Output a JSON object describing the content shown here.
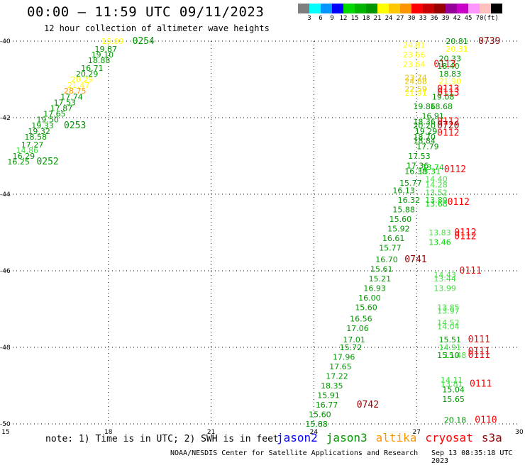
{
  "title": "00:00 – 11:59 UTC 09/11/2023",
  "subtitle": "12 hour collection of altimeter wave heights",
  "colorbar": {
    "colors": [
      "#7f7f7f",
      "#00ffff",
      "#0096ff",
      "#0000ff",
      "#00d800",
      "#00b400",
      "#009600",
      "#ffff00",
      "#ffc800",
      "#ff9600",
      "#ff0000",
      "#c80000",
      "#960000",
      "#960096",
      "#c800c8",
      "#ff96ff",
      "#ffbfbf",
      "#000000"
    ],
    "labels": [
      "3",
      "6",
      "9",
      "12",
      "15",
      "18",
      "21",
      "24",
      "27",
      "30",
      "33",
      "36",
      "39",
      "42",
      "45",
      "70",
      "(ft)"
    ]
  },
  "chart_data": {
    "type": "scatter",
    "x_ticks": [
      "15",
      "18",
      "21",
      "24",
      "27",
      "30"
    ],
    "y_ticks": [
      "-40",
      "-42",
      "-44",
      "-46",
      "-48",
      "-50"
    ],
    "xlim": [
      15,
      30
    ],
    "ylim": [
      -50,
      -40
    ],
    "grid": "dotted",
    "colors": {
      "g": "#009600",
      "lg": "#00d800",
      "pg": "#40e040",
      "y": "#ffff00",
      "o": "#e6c800",
      "or": "#ff9600",
      "r": "#ff0000",
      "dr": "#960000"
    },
    "points": [
      {
        "x": 17.8,
        "y": -40.0,
        "t": "19.09",
        "c": "y"
      },
      {
        "x": 18.7,
        "y": -40.0,
        "t": "0254",
        "c": "g"
      },
      {
        "x": 17.6,
        "y": -40.2,
        "t": "19.87",
        "c": "g"
      },
      {
        "x": 17.5,
        "y": -40.35,
        "t": "19.10",
        "c": "g"
      },
      {
        "x": 17.4,
        "y": -40.5,
        "t": "18.88",
        "c": "g"
      },
      {
        "x": 17.2,
        "y": -40.7,
        "t": "16.71",
        "c": "g"
      },
      {
        "x": 17.05,
        "y": -40.85,
        "t": "20.29",
        "c": "g"
      },
      {
        "x": 16.9,
        "y": -41.0,
        "t": "20.29",
        "c": "y"
      },
      {
        "x": 16.8,
        "y": -41.15,
        "t": "21.47",
        "c": "y"
      },
      {
        "x": 16.7,
        "y": -41.3,
        "t": "28.75",
        "c": "or"
      },
      {
        "x": 16.6,
        "y": -41.45,
        "t": "17.74",
        "c": "g"
      },
      {
        "x": 16.4,
        "y": -41.6,
        "t": "17.53",
        "c": "g"
      },
      {
        "x": 16.3,
        "y": -41.75,
        "t": "17.87",
        "c": "g"
      },
      {
        "x": 16.1,
        "y": -41.9,
        "t": "17.65",
        "c": "g"
      },
      {
        "x": 15.9,
        "y": -42.05,
        "t": "19.50",
        "c": "g"
      },
      {
        "x": 15.75,
        "y": -42.2,
        "t": "19.33",
        "c": "g"
      },
      {
        "x": 16.7,
        "y": -42.2,
        "t": "0253",
        "c": "g"
      },
      {
        "x": 15.65,
        "y": -42.35,
        "t": "19.32",
        "c": "g"
      },
      {
        "x": 15.55,
        "y": -42.5,
        "t": "18.58",
        "c": "g"
      },
      {
        "x": 15.45,
        "y": -42.7,
        "t": "17.27",
        "c": "g"
      },
      {
        "x": 15.3,
        "y": -42.85,
        "t": "14.86",
        "c": "pg"
      },
      {
        "x": 15.2,
        "y": -43.0,
        "t": "16.29",
        "c": "g"
      },
      {
        "x": 15.05,
        "y": -43.15,
        "t": "16.25",
        "c": "g"
      },
      {
        "x": 15.9,
        "y": -43.15,
        "t": "0252",
        "c": "g"
      },
      {
        "x": 26.6,
        "y": -40.1,
        "t": "24.81",
        "c": "y"
      },
      {
        "x": 27.85,
        "y": -40.0,
        "t": "20.81",
        "c": "g"
      },
      {
        "x": 28.8,
        "y": -40.0,
        "t": "0739",
        "c": "dr"
      },
      {
        "x": 27.85,
        "y": -40.2,
        "t": "20.31",
        "c": "y"
      },
      {
        "x": 26.6,
        "y": -40.35,
        "t": "23.66",
        "c": "y"
      },
      {
        "x": 27.65,
        "y": -40.45,
        "t": "20.33",
        "c": "g"
      },
      {
        "x": 26.6,
        "y": -40.6,
        "t": "23.64",
        "c": "y"
      },
      {
        "x": 27.5,
        "y": -40.6,
        "t": "0113",
        "c": "r"
      },
      {
        "x": 27.6,
        "y": -40.65,
        "t": "18.40",
        "c": "g"
      },
      {
        "x": 27.65,
        "y": -40.85,
        "t": "18.83",
        "c": "g"
      },
      {
        "x": 26.65,
        "y": -40.95,
        "t": "23.74",
        "c": "o"
      },
      {
        "x": 26.65,
        "y": -41.05,
        "t": "24.88",
        "c": "o"
      },
      {
        "x": 27.65,
        "y": -41.05,
        "t": "21.90",
        "c": "y"
      },
      {
        "x": 26.65,
        "y": -41.25,
        "t": "22.59",
        "c": "o"
      },
      {
        "x": 27.6,
        "y": -41.25,
        "t": "0113",
        "c": "r"
      },
      {
        "x": 26.65,
        "y": -41.35,
        "t": "21.91",
        "c": "y"
      },
      {
        "x": 27.6,
        "y": -41.35,
        "t": "0113",
        "c": "r"
      },
      {
        "x": 27.45,
        "y": -41.45,
        "t": "19.08",
        "c": "g"
      },
      {
        "x": 26.9,
        "y": -41.7,
        "t": "19.86",
        "c": "g"
      },
      {
        "x": 27.4,
        "y": -41.7,
        "t": "18.68",
        "c": "g"
      },
      {
        "x": 27.15,
        "y": -41.95,
        "t": "16.91",
        "c": "g"
      },
      {
        "x": 26.9,
        "y": -42.1,
        "t": "18.36",
        "c": "g"
      },
      {
        "x": 27.6,
        "y": -42.1,
        "t": "0112",
        "c": "r"
      },
      {
        "x": 26.9,
        "y": -42.2,
        "t": "20.20",
        "c": "g"
      },
      {
        "x": 27.6,
        "y": -42.2,
        "t": "0720",
        "c": "dr"
      },
      {
        "x": 26.95,
        "y": -42.35,
        "t": "19.29",
        "c": "g"
      },
      {
        "x": 27.6,
        "y": -42.4,
        "t": "0112",
        "c": "r"
      },
      {
        "x": 26.9,
        "y": -42.5,
        "t": "18.70",
        "c": "g"
      },
      {
        "x": 26.9,
        "y": -42.6,
        "t": "18.84",
        "c": "g"
      },
      {
        "x": 27.0,
        "y": -42.75,
        "t": "17.79",
        "c": "g"
      },
      {
        "x": 26.75,
        "y": -43.0,
        "t": "17.53",
        "c": "g"
      },
      {
        "x": 26.7,
        "y": -43.25,
        "t": "17.36",
        "c": "g"
      },
      {
        "x": 27.15,
        "y": -43.3,
        "t": "13.74",
        "c": "lg"
      },
      {
        "x": 26.65,
        "y": -43.4,
        "t": "16.38",
        "c": "g"
      },
      {
        "x": 27.05,
        "y": -43.4,
        "t": "13.31",
        "c": "lg"
      },
      {
        "x": 27.8,
        "y": -43.35,
        "t": "0112",
        "c": "r"
      },
      {
        "x": 27.25,
        "y": -43.6,
        "t": "14.40",
        "c": "pg"
      },
      {
        "x": 26.5,
        "y": -43.7,
        "t": "15.77",
        "c": "g"
      },
      {
        "x": 27.25,
        "y": -43.75,
        "t": "14.28",
        "c": "pg"
      },
      {
        "x": 26.3,
        "y": -43.9,
        "t": "16.13",
        "c": "g"
      },
      {
        "x": 27.25,
        "y": -43.95,
        "t": "13.52",
        "c": "pg"
      },
      {
        "x": 26.45,
        "y": -44.15,
        "t": "16.32",
        "c": "g"
      },
      {
        "x": 27.25,
        "y": -44.15,
        "t": "13.89",
        "c": "lg"
      },
      {
        "x": 27.25,
        "y": -44.25,
        "t": "13.68",
        "c": "lg"
      },
      {
        "x": 27.9,
        "y": -44.2,
        "t": "0112",
        "c": "r"
      },
      {
        "x": 26.3,
        "y": -44.4,
        "t": "15.88",
        "c": "g"
      },
      {
        "x": 26.2,
        "y": -44.65,
        "t": "15.60",
        "c": "g"
      },
      {
        "x": 26.15,
        "y": -44.9,
        "t": "15.92",
        "c": "g"
      },
      {
        "x": 27.35,
        "y": -45.0,
        "t": "13.83",
        "c": "pg"
      },
      {
        "x": 28.1,
        "y": -45.0,
        "t": "0112",
        "c": "r"
      },
      {
        "x": 28.1,
        "y": -45.1,
        "t": "0112",
        "c": "r"
      },
      {
        "x": 26.0,
        "y": -45.15,
        "t": "16.61",
        "c": "g"
      },
      {
        "x": 27.35,
        "y": -45.25,
        "t": "13.46",
        "c": "lg"
      },
      {
        "x": 25.9,
        "y": -45.4,
        "t": "15.77",
        "c": "g"
      },
      {
        "x": 25.8,
        "y": -45.7,
        "t": "16.70",
        "c": "g"
      },
      {
        "x": 26.65,
        "y": -45.7,
        "t": "0741",
        "c": "dr"
      },
      {
        "x": 25.65,
        "y": -45.95,
        "t": "15.61",
        "c": "g"
      },
      {
        "x": 27.5,
        "y": -46.1,
        "t": "14.43",
        "c": "pg"
      },
      {
        "x": 28.25,
        "y": -46.0,
        "t": "0111",
        "c": "r"
      },
      {
        "x": 25.6,
        "y": -46.2,
        "t": "15.21",
        "c": "g"
      },
      {
        "x": 27.5,
        "y": -46.2,
        "t": "13.44",
        "c": "pg"
      },
      {
        "x": 25.45,
        "y": -46.45,
        "t": "16.93",
        "c": "g"
      },
      {
        "x": 27.5,
        "y": -46.45,
        "t": "13.99",
        "c": "pg"
      },
      {
        "x": 25.3,
        "y": -46.7,
        "t": "16.00",
        "c": "g"
      },
      {
        "x": 25.2,
        "y": -46.95,
        "t": "15.60",
        "c": "g"
      },
      {
        "x": 27.6,
        "y": -46.95,
        "t": "13.85",
        "c": "pg"
      },
      {
        "x": 27.6,
        "y": -47.05,
        "t": "13.97",
        "c": "pg"
      },
      {
        "x": 25.05,
        "y": -47.25,
        "t": "16.56",
        "c": "g"
      },
      {
        "x": 27.6,
        "y": -47.35,
        "t": "14.52",
        "c": "pg"
      },
      {
        "x": 27.6,
        "y": -47.45,
        "t": "14.04",
        "c": "pg"
      },
      {
        "x": 24.95,
        "y": -47.5,
        "t": "17.06",
        "c": "g"
      },
      {
        "x": 24.85,
        "y": -47.8,
        "t": "17.01",
        "c": "g"
      },
      {
        "x": 27.65,
        "y": -47.8,
        "t": "15.51",
        "c": "g"
      },
      {
        "x": 28.5,
        "y": -47.8,
        "t": "0111",
        "c": "r"
      },
      {
        "x": 24.75,
        "y": -48.0,
        "t": "15.72",
        "c": "g"
      },
      {
        "x": 27.65,
        "y": -48.0,
        "t": "14.91",
        "c": "pg"
      },
      {
        "x": 27.8,
        "y": -48.2,
        "t": "15.48",
        "c": "pg"
      },
      {
        "x": 27.6,
        "y": -48.2,
        "t": "15.10",
        "c": "g"
      },
      {
        "x": 28.5,
        "y": -48.1,
        "t": "0111",
        "c": "r"
      },
      {
        "x": 28.5,
        "y": -48.2,
        "t": "0111",
        "c": "r"
      },
      {
        "x": 24.55,
        "y": -48.25,
        "t": "17.96",
        "c": "g"
      },
      {
        "x": 24.45,
        "y": -48.5,
        "t": "17.65",
        "c": "g"
      },
      {
        "x": 24.35,
        "y": -48.75,
        "t": "17.22",
        "c": "g"
      },
      {
        "x": 27.7,
        "y": -48.85,
        "t": "14.11",
        "c": "pg"
      },
      {
        "x": 24.2,
        "y": -49.0,
        "t": "18.35",
        "c": "g"
      },
      {
        "x": 27.7,
        "y": -48.95,
        "t": "13.81",
        "c": "pg"
      },
      {
        "x": 28.55,
        "y": -48.95,
        "t": "0111",
        "c": "r"
      },
      {
        "x": 27.75,
        "y": -49.1,
        "t": "15.04",
        "c": "g"
      },
      {
        "x": 24.1,
        "y": -49.25,
        "t": "15.91",
        "c": "g"
      },
      {
        "x": 27.75,
        "y": -49.35,
        "t": "15.65",
        "c": "g"
      },
      {
        "x": 24.05,
        "y": -49.5,
        "t": "16.77",
        "c": "g"
      },
      {
        "x": 25.25,
        "y": -49.5,
        "t": "0742",
        "c": "dr"
      },
      {
        "x": 23.85,
        "y": -49.75,
        "t": "15.60",
        "c": "g"
      },
      {
        "x": 27.8,
        "y": -49.9,
        "t": "20.18",
        "c": "g"
      },
      {
        "x": 28.7,
        "y": -49.9,
        "t": "0110",
        "c": "r"
      },
      {
        "x": 23.75,
        "y": -50.0,
        "t": "15.88",
        "c": "g"
      }
    ]
  },
  "note": "note:  1) Time is in UTC;  2) SWH is in feet",
  "satellites": [
    {
      "name": "jason2",
      "color": "#0000ff"
    },
    {
      "name": "jason3",
      "color": "#009600"
    },
    {
      "name": "altika",
      "color": "#ff9600"
    },
    {
      "name": "cryosat",
      "color": "#ff0000"
    },
    {
      "name": "s3a",
      "color": "#960000"
    }
  ],
  "footer": "NOAA/NESDIS Center for Satellite Applications and Research",
  "footer_ts": "Sep 13 08:35:18 UTC 2023"
}
